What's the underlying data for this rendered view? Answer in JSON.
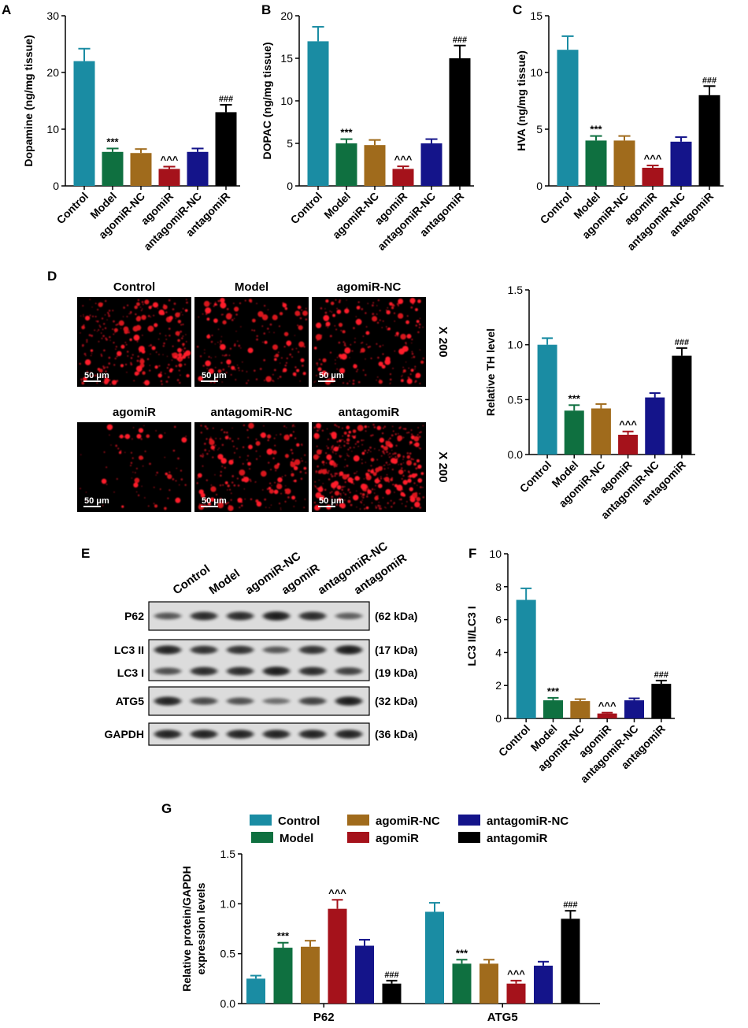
{
  "colors": [
    "#1a8ca3",
    "#0f7040",
    "#a06b1c",
    "#a5121b",
    "#14148a",
    "#000000"
  ],
  "groups": [
    "Control",
    "Model",
    "agomiR-NC",
    "agomiR",
    "antagomiR-NC",
    "antagomiR"
  ],
  "chart_data": [
    {
      "panel": "A",
      "type": "bar",
      "categories": [
        "Control",
        "Model",
        "agomiR-NC",
        "agomiR",
        "antagomiR-NC",
        "antagomiR"
      ],
      "values": [
        22,
        6,
        5.8,
        3,
        6,
        13
      ],
      "errors": [
        2.2,
        0.6,
        0.7,
        0.4,
        0.6,
        1.3
      ],
      "annotations": [
        "",
        "***",
        "",
        "^^^",
        "",
        "###"
      ],
      "ylabel": "Dopamine (ng/mg tissue)",
      "ylim": [
        0,
        30
      ],
      "yticks": [
        0,
        10,
        20,
        30
      ]
    },
    {
      "panel": "B",
      "type": "bar",
      "categories": [
        "Control",
        "Model",
        "agomiR-NC",
        "agomiR",
        "antagomiR-NC",
        "antagomiR"
      ],
      "values": [
        17,
        5,
        4.8,
        2,
        5,
        15
      ],
      "errors": [
        1.7,
        0.5,
        0.6,
        0.3,
        0.5,
        1.5
      ],
      "annotations": [
        "",
        "***",
        "",
        "^^^",
        "",
        "###"
      ],
      "ylabel": "DOPAC (ng/mg tissue)",
      "ylim": [
        0,
        20
      ],
      "yticks": [
        0,
        5,
        10,
        15,
        20
      ]
    },
    {
      "panel": "C",
      "type": "bar",
      "categories": [
        "Control",
        "Model",
        "agomiR-NC",
        "agomiR",
        "antagomiR-NC",
        "antagomiR"
      ],
      "values": [
        12,
        4,
        4,
        1.6,
        3.9,
        8
      ],
      "errors": [
        1.2,
        0.4,
        0.4,
        0.2,
        0.4,
        0.8
      ],
      "annotations": [
        "",
        "***",
        "",
        "^^^",
        "",
        "###"
      ],
      "ylabel": "HVA (ng/mg tissue)",
      "ylim": [
        0,
        15
      ],
      "yticks": [
        0,
        5,
        10,
        15
      ]
    },
    {
      "panel": "D",
      "type": "bar",
      "categories": [
        "Control",
        "Model",
        "agomiR-NC",
        "agomiR",
        "antagomiR-NC",
        "antagomiR"
      ],
      "values": [
        1.0,
        0.4,
        0.42,
        0.18,
        0.52,
        0.9
      ],
      "errors": [
        0.06,
        0.05,
        0.04,
        0.03,
        0.04,
        0.07
      ],
      "annotations": [
        "",
        "***",
        "",
        "^^^",
        "",
        "###"
      ],
      "ylabel": "Relative TH level",
      "ylim": [
        0,
        1.5
      ],
      "yticks": [
        "0.0",
        "0.5",
        "1.0",
        "1.5"
      ]
    },
    {
      "panel": "F",
      "type": "bar",
      "categories": [
        "Control",
        "Model",
        "agomiR-NC",
        "agomiR",
        "antagomiR-NC",
        "antagomiR"
      ],
      "values": [
        7.2,
        1.1,
        1.05,
        0.3,
        1.1,
        2.1
      ],
      "errors": [
        0.7,
        0.15,
        0.12,
        0.05,
        0.12,
        0.2
      ],
      "annotations": [
        "",
        "***",
        "",
        "^^^",
        "",
        "###"
      ],
      "ylabel": "LC3 II/LC3 I",
      "ylim": [
        0,
        10
      ],
      "yticks": [
        0,
        2,
        4,
        6,
        8,
        10
      ]
    },
    {
      "panel": "G",
      "type": "bar",
      "categories": [
        "P62",
        "ATG5"
      ],
      "series": [
        {
          "name": "Control",
          "values": [
            0.25,
            0.92
          ],
          "errors": [
            0.03,
            0.09
          ],
          "annotations": [
            "",
            ""
          ]
        },
        {
          "name": "Model",
          "values": [
            0.56,
            0.4
          ],
          "errors": [
            0.05,
            0.04
          ],
          "annotations": [
            "***",
            "***"
          ]
        },
        {
          "name": "agomiR-NC",
          "values": [
            0.57,
            0.4
          ],
          "errors": [
            0.06,
            0.04
          ],
          "annotations": [
            "",
            ""
          ]
        },
        {
          "name": "agomiR",
          "values": [
            0.95,
            0.2
          ],
          "errors": [
            0.09,
            0.03
          ],
          "annotations": [
            "^^^",
            "^^^"
          ]
        },
        {
          "name": "antagomiR-NC",
          "values": [
            0.58,
            0.38
          ],
          "errors": [
            0.06,
            0.04
          ],
          "annotations": [
            "",
            ""
          ]
        },
        {
          "name": "antagomiR",
          "values": [
            0.2,
            0.85
          ],
          "errors": [
            0.03,
            0.08
          ],
          "annotations": [
            "###",
            "###"
          ]
        }
      ],
      "ylabel_lines": [
        "Relative protein/GAPDH",
        "expression levels"
      ],
      "ylim": [
        0,
        1.5
      ],
      "yticks": [
        "0.0",
        "0.5",
        "1.0",
        "1.5"
      ],
      "legend_position": "top"
    }
  ],
  "panel_labels": {
    "A": "A",
    "B": "B",
    "C": "C",
    "D": "D",
    "E": "E",
    "F": "F",
    "G": "G"
  },
  "micrographs": {
    "titles": [
      "Control",
      "Model",
      "agomiR-NC",
      "agomiR",
      "antagomiR-NC",
      "antagomiR"
    ],
    "density": [
      70,
      45,
      55,
      20,
      55,
      110
    ],
    "scale_bar": "50 μm",
    "magnification": "X 200"
  },
  "blot": {
    "lanes": [
      "Control",
      "Model",
      "agomiR-NC",
      "agomiR",
      "antagomiR-NC",
      "antagomiR"
    ],
    "rows": [
      {
        "label": "P62",
        "kda": [
          "(62 kDa)"
        ],
        "intensity": [
          [
            0.55,
            0.85,
            0.85,
            0.95,
            0.85,
            0.5
          ]
        ]
      },
      {
        "label": "LC3 II",
        "label2": "LC3 I",
        "kda": [
          "(17 kDa)",
          "(19 kDa)"
        ],
        "intensity": [
          [
            0.9,
            0.8,
            0.8,
            0.55,
            0.8,
            0.95
          ],
          [
            0.6,
            0.85,
            0.85,
            0.95,
            0.85,
            0.7
          ]
        ]
      },
      {
        "label": "ATG5",
        "kda": [
          "(32 kDa)"
        ],
        "intensity": [
          [
            0.9,
            0.65,
            0.6,
            0.4,
            0.7,
            0.95
          ]
        ]
      },
      {
        "label": "GAPDH",
        "kda": [
          "(36 kDa)"
        ],
        "intensity": [
          [
            0.9,
            0.9,
            0.9,
            0.9,
            0.9,
            0.9
          ]
        ]
      }
    ]
  }
}
